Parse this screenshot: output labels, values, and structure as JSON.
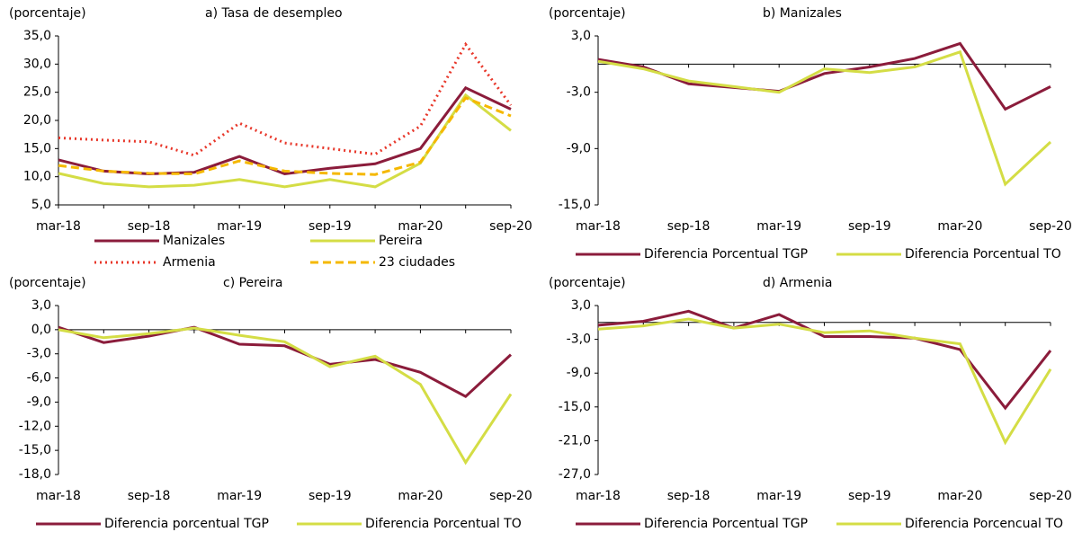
{
  "chart_data": [
    {
      "type": "line",
      "title": "a) Tasa de desempleo",
      "ylabel": "(porcentaje)",
      "categories": [
        "mar-18",
        null,
        "sep-18",
        null,
        "mar-19",
        null,
        "sep-19",
        null,
        "mar-20",
        null,
        "sep-20"
      ],
      "ylim": [
        5,
        35
      ],
      "yticks": [
        {
          "value": 5,
          "label": "5,0"
        },
        {
          "value": 10,
          "label": "10,0"
        },
        {
          "value": 15,
          "label": "15,0"
        },
        {
          "value": 20,
          "label": "20,0"
        },
        {
          "value": 25,
          "label": "25,0"
        },
        {
          "value": 30,
          "label": "30,0"
        },
        {
          "value": 35,
          "label": "35,0"
        }
      ],
      "legend": "bottom",
      "series": [
        {
          "name": "Manizales",
          "color": "#8b1c3b",
          "dash": "solid",
          "values": [
            13.0,
            11.0,
            10.5,
            10.8,
            13.6,
            10.5,
            11.5,
            12.3,
            15.0,
            25.8,
            22.0
          ]
        },
        {
          "name": "Pereira",
          "color": "#d4dd45",
          "dash": "solid",
          "values": [
            10.6,
            8.8,
            8.2,
            8.5,
            9.5,
            8.2,
            9.5,
            8.2,
            12.4,
            24.5,
            18.2
          ]
        },
        {
          "name": "Armenia",
          "color": "#e8372a",
          "dash": "dotted",
          "values": [
            16.9,
            16.5,
            16.2,
            13.8,
            19.5,
            16.0,
            15.0,
            14.0,
            19.0,
            33.5,
            22.7
          ]
        },
        {
          "name": "23 ciudades",
          "color": "#f5b800",
          "dash": "dashed",
          "values": [
            12.0,
            11.0,
            10.6,
            10.5,
            12.8,
            11.0,
            10.6,
            10.4,
            12.6,
            24.0,
            20.8
          ]
        }
      ]
    },
    {
      "type": "line",
      "title": "b) Manizales",
      "ylabel": "(porcentaje)",
      "categories": [
        "mar-18",
        null,
        "sep-18",
        null,
        "mar-19",
        null,
        "sep-19",
        null,
        "mar-20",
        null,
        "sep-20"
      ],
      "ylim": [
        -15,
        3
      ],
      "yticks": [
        {
          "value": -15,
          "label": "-15,0"
        },
        {
          "value": -9,
          "label": "-9,0"
        },
        {
          "value": -3,
          "label": "-3,0"
        },
        {
          "value": 3,
          "label": "3,0"
        }
      ],
      "legend": "bottom",
      "series": [
        {
          "name": "Diferencia Porcentual TGP",
          "color": "#8b1c3b",
          "dash": "solid",
          "values": [
            0.5,
            -0.3,
            -2.1,
            -2.5,
            -2.9,
            -1.0,
            -0.3,
            0.6,
            2.2,
            -4.8,
            -2.4
          ]
        },
        {
          "name": "Diferencia Porcentual TO",
          "color": "#d4dd45",
          "dash": "solid",
          "values": [
            0.3,
            -0.5,
            -1.8,
            -2.4,
            -3.0,
            -0.5,
            -0.9,
            -0.3,
            1.3,
            -12.8,
            -8.3
          ]
        }
      ]
    },
    {
      "type": "line",
      "title": "c) Pereira",
      "ylabel": "(porcentaje)",
      "categories": [
        "mar-18",
        null,
        "sep-18",
        null,
        "mar-19",
        null,
        "sep-19",
        null,
        "mar-20",
        null,
        "sep-20"
      ],
      "ylim": [
        -18,
        3
      ],
      "yticks": [
        {
          "value": -18,
          "label": "-18,0"
        },
        {
          "value": -15,
          "label": "-15,0"
        },
        {
          "value": -12,
          "label": "-12,0"
        },
        {
          "value": -9,
          "label": "-9,0"
        },
        {
          "value": -6,
          "label": "-6,0"
        },
        {
          "value": -3,
          "label": "-3,0"
        },
        {
          "value": 0,
          "label": "0,0"
        },
        {
          "value": 3,
          "label": "3,0"
        }
      ],
      "legend": "bottom",
      "series": [
        {
          "name": "Diferencia porcentual TGP",
          "color": "#8b1c3b",
          "dash": "solid",
          "values": [
            0.3,
            -1.6,
            -0.8,
            0.3,
            -1.8,
            -2.0,
            -4.3,
            -3.7,
            -5.3,
            -8.3,
            -3.1
          ]
        },
        {
          "name": "Diferencia Porcentual TO",
          "color": "#d4dd45",
          "dash": "solid",
          "values": [
            0.0,
            -1.0,
            -0.5,
            0.2,
            -0.7,
            -1.5,
            -4.6,
            -3.3,
            -6.8,
            -16.5,
            -8.0
          ]
        }
      ]
    },
    {
      "type": "line",
      "title": "d) Armenia",
      "ylabel": "(porcentaje)",
      "categories": [
        "mar-18",
        null,
        "sep-18",
        null,
        "mar-19",
        null,
        "sep-19",
        null,
        "mar-20",
        null,
        "sep-20"
      ],
      "ylim": [
        -27,
        3
      ],
      "yticks": [
        {
          "value": -27,
          "label": "-27,0"
        },
        {
          "value": -21,
          "label": "-21,0"
        },
        {
          "value": -15,
          "label": "-15,0"
        },
        {
          "value": -9,
          "label": "-9,0"
        },
        {
          "value": -3,
          "label": "-3,0"
        },
        {
          "value": 3,
          "label": "3,0"
        }
      ],
      "legend": "bottom",
      "series": [
        {
          "name": "Diferencia Porcentual TGP",
          "color": "#8b1c3b",
          "dash": "solid",
          "values": [
            -0.5,
            0.2,
            2.0,
            -1.0,
            1.4,
            -2.5,
            -2.5,
            -2.8,
            -4.8,
            -15.2,
            -5.0
          ]
        },
        {
          "name": "Diferencia Porcencual TO",
          "color": "#d4dd45",
          "dash": "solid",
          "values": [
            -1.2,
            -0.6,
            0.6,
            -1.0,
            -0.3,
            -1.8,
            -1.5,
            -2.8,
            -3.8,
            -21.3,
            -8.3
          ]
        }
      ]
    }
  ]
}
